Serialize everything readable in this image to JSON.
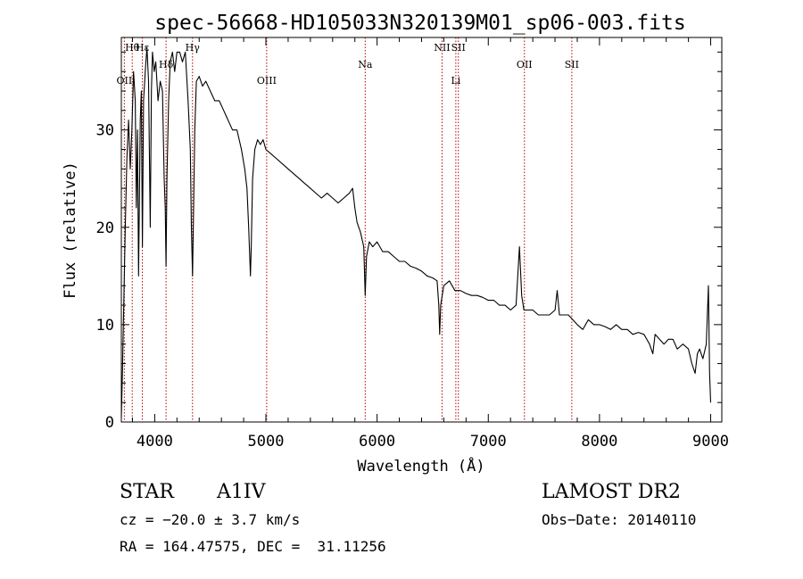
{
  "chart_data": {
    "type": "line",
    "title": "spec-56668-HD105033N320139M01_sp06-003.fits",
    "xlabel": "Wavelength (Å)",
    "ylabel": "Flux (relative)",
    "xlim": [
      3700,
      9100
    ],
    "ylim": [
      0,
      39.5
    ],
    "x_ticks": [
      4000,
      5000,
      6000,
      7000,
      8000,
      9000
    ],
    "y_ticks": [
      0,
      10,
      20,
      30
    ],
    "grid": false,
    "series": [
      {
        "x": [
          3700,
          3710,
          3722,
          3735,
          3750,
          3765,
          3780,
          3795,
          3810,
          3825,
          3835,
          3845,
          3855,
          3870,
          3880,
          3889,
          3900,
          3915,
          3930,
          3945,
          3960,
          3970,
          3980,
          3995,
          4010,
          4030,
          4050,
          4070,
          4085,
          4095,
          4102,
          4110,
          4125,
          4140,
          4160,
          4180,
          4200,
          4225,
          4250,
          4275,
          4300,
          4320,
          4330,
          4340,
          4350,
          4360,
          4375,
          4400,
          4430,
          4460,
          4500,
          4540,
          4580,
          4620,
          4660,
          4700,
          4740,
          4780,
          4810,
          4830,
          4845,
          4855,
          4861,
          4868,
          4880,
          4900,
          4925,
          4950,
          4975,
          5000,
          5050,
          5100,
          5150,
          5200,
          5250,
          5300,
          5350,
          5400,
          5450,
          5500,
          5550,
          5600,
          5650,
          5700,
          5750,
          5780,
          5800,
          5820,
          5850,
          5880,
          5893,
          5905,
          5930,
          5960,
          6000,
          6050,
          6100,
          6150,
          6200,
          6250,
          6300,
          6350,
          6400,
          6450,
          6500,
          6540,
          6555,
          6563,
          6572,
          6600,
          6650,
          6700,
          6750,
          6800,
          6850,
          6900,
          6950,
          7000,
          7050,
          7100,
          7150,
          7200,
          7250,
          7280,
          7300,
          7320,
          7350,
          7400,
          7450,
          7500,
          7550,
          7600,
          7620,
          7640,
          7680,
          7720,
          7760,
          7800,
          7850,
          7900,
          7950,
          8000,
          8050,
          8100,
          8150,
          8200,
          8250,
          8300,
          8350,
          8400,
          8450,
          8480,
          8500,
          8540,
          8580,
          8620,
          8660,
          8700,
          8750,
          8800,
          8830,
          8860,
          8880,
          8900,
          8930,
          8960,
          8980,
          8990,
          9000
        ],
        "y": [
          0.5,
          5,
          12,
          20,
          27,
          31,
          26,
          30,
          36,
          33,
          22,
          30,
          15,
          31,
          34,
          18,
          33,
          36,
          38.5,
          35,
          20,
          34,
          38,
          36,
          37,
          33,
          35,
          34,
          25,
          22,
          16,
          25,
          33,
          37,
          38,
          36,
          38,
          38,
          37,
          38,
          33,
          28,
          20,
          15,
          22,
          30,
          35,
          35.5,
          34.5,
          35,
          34,
          33,
          33,
          32,
          31,
          30,
          30,
          28,
          26,
          24,
          20,
          17,
          15,
          18,
          25,
          28,
          29,
          28.5,
          29,
          28,
          27.5,
          27,
          26.5,
          26,
          25.5,
          25,
          24.5,
          24,
          23.5,
          23,
          23.5,
          23,
          22.5,
          23,
          23.5,
          24,
          22,
          20.5,
          19.5,
          18,
          13,
          17,
          18.5,
          18,
          18.5,
          17.5,
          17.5,
          17,
          16.5,
          16.5,
          16,
          15.8,
          15.5,
          15,
          14.8,
          14.5,
          12,
          9,
          12,
          14,
          14.5,
          13.5,
          13.5,
          13.2,
          13,
          13,
          12.8,
          12.5,
          12.5,
          12,
          12,
          11.5,
          12,
          18,
          13,
          11.5,
          11.5,
          11.5,
          11,
          11,
          11,
          11.5,
          13.5,
          11,
          11,
          11,
          10.5,
          10,
          9.5,
          10.5,
          10,
          10,
          9.8,
          9.5,
          10,
          9.5,
          9.5,
          9,
          9.2,
          9,
          8,
          7,
          9,
          8.5,
          8,
          8.5,
          8.5,
          7.5,
          8,
          7.5,
          6,
          5,
          7,
          7.5,
          6.5,
          8,
          14,
          5,
          2
        ]
      }
    ],
    "lines": [
      {
        "label": "Hθ",
        "x": 3798
      },
      {
        "label": "OII",
        "x": 3727
      },
      {
        "label": "Hε",
        "x": 3889
      },
      {
        "label": "Hδ",
        "x": 4102
      },
      {
        "label": "Hγ",
        "x": 4340
      },
      {
        "label": "OIII",
        "x": 5007
      },
      {
        "label": "Na",
        "x": 5893
      },
      {
        "label": "NII",
        "x": 6584
      },
      {
        "label": "Li",
        "x": 6708
      },
      {
        "label": "SII",
        "x": 6731
      },
      {
        "label": "OII",
        "x": 7325
      },
      {
        "label": "SII",
        "x": 7751
      }
    ]
  },
  "footer": {
    "star_type": "STAR",
    "spectral_class": "A1IV",
    "survey": "LAMOST DR2",
    "cz": "cz = −20.0 ± 3.7 km/s",
    "obs_date": "Obs−Date: 20140110",
    "coords": "RA = 164.47575, DEC =  31.11256"
  }
}
